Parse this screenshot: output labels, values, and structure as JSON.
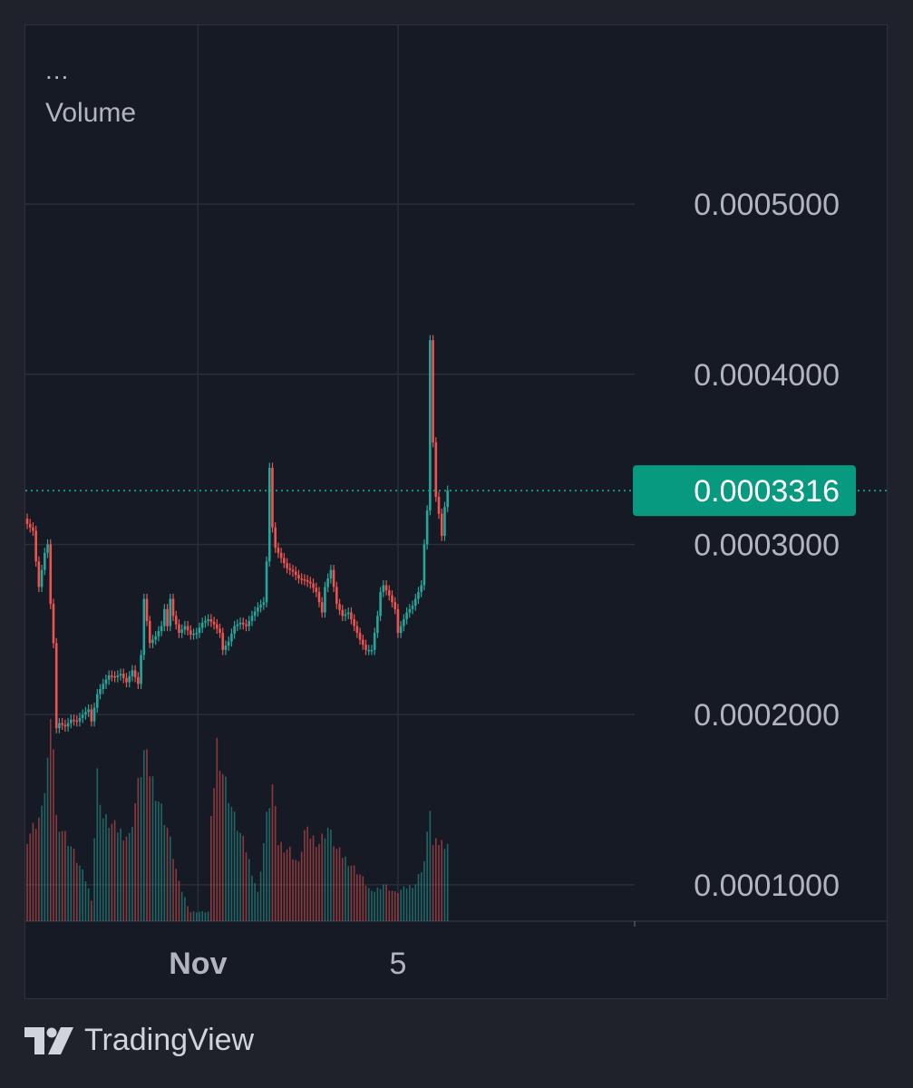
{
  "legend": {
    "more": "...",
    "volume": "Volume"
  },
  "branding": {
    "name": "TradingView",
    "logo_icon": "tradingview-logo-icon"
  },
  "colors": {
    "background": "#1f222b",
    "pane": "#161a25",
    "grid": "#2a2e39",
    "up": "#26a69a",
    "down": "#ef5350",
    "price_tag": "#089981",
    "axis_text": "#b2b5be"
  },
  "chart_data": {
    "type": "candlestick",
    "title": "",
    "xlabel": "",
    "ylabel": "",
    "ylim": [
      7.86e-05,
      0.000605
    ],
    "y_ticks": [
      "0.0005000",
      "0.0004000",
      "0.0003000",
      "0.0002000",
      "0.0001000"
    ],
    "y_tick_values": [
      0.0005,
      0.0004,
      0.0003,
      0.0002,
      0.0001
    ],
    "x_ticks": [
      {
        "label": "Nov",
        "bold": true,
        "index": 58.5
      },
      {
        "label": "5",
        "bold": false,
        "index": 127
      }
    ],
    "last_price": {
      "label": "0.0003316",
      "value": 0.0003316
    },
    "grid": true,
    "bars_on_chart": 171,
    "candle_path": [
      [
        0,
        0.000312
      ],
      [
        2,
        0.000308
      ],
      [
        3,
        0.00029
      ],
      [
        4,
        0.000275
      ],
      [
        5,
        0.000285
      ],
      [
        6,
        0.000295
      ],
      [
        7,
        0.0003
      ],
      [
        8,
        0.000265
      ],
      [
        9,
        0.000242
      ],
      [
        10,
        0.000192
      ],
      [
        11,
        0.000195
      ],
      [
        13,
        0.000193
      ],
      [
        15,
        0.000197
      ],
      [
        17,
        0.000196
      ],
      [
        19,
        0.0002
      ],
      [
        21,
        0.000203
      ],
      [
        22,
        0.000196
      ],
      [
        24,
        0.000212
      ],
      [
        26,
        0.000218
      ],
      [
        28,
        0.000223
      ],
      [
        30,
        0.000222
      ],
      [
        32,
        0.000224
      ],
      [
        34,
        0.000219
      ],
      [
        36,
        0.000226
      ],
      [
        38,
        0.000218
      ],
      [
        39,
        0.000235
      ],
      [
        40,
        0.000268
      ],
      [
        42,
        0.000242
      ],
      [
        44,
        0.000246
      ],
      [
        46,
        0.000252
      ],
      [
        47,
        0.000262
      ],
      [
        48,
        0.000252
      ],
      [
        49,
        0.000268
      ],
      [
        50,
        0.000258
      ],
      [
        52,
        0.000248
      ],
      [
        54,
        0.000252
      ],
      [
        56,
        0.000247
      ],
      [
        58,
        0.000248
      ],
      [
        60,
        0.000254
      ],
      [
        62,
        0.000256
      ],
      [
        64,
        0.000253
      ],
      [
        66,
        0.000248
      ],
      [
        67,
        0.000238
      ],
      [
        69,
        0.000243
      ],
      [
        71,
        0.000252
      ],
      [
        73,
        0.000254
      ],
      [
        75,
        0.000252
      ],
      [
        77,
        0.000258
      ],
      [
        79,
        0.000263
      ],
      [
        81,
        0.000266
      ],
      [
        82,
        0.00029
      ],
      [
        83,
        0.000345
      ],
      [
        84,
        0.00031
      ],
      [
        85,
        0.000298
      ],
      [
        87,
        0.000292
      ],
      [
        89,
        0.000286
      ],
      [
        91,
        0.000284
      ],
      [
        93,
        0.00028
      ],
      [
        95,
        0.000279
      ],
      [
        97,
        0.000277
      ],
      [
        99,
        0.000272
      ],
      [
        101,
        0.00026
      ],
      [
        102,
        0.000275
      ],
      [
        104,
        0.000285
      ],
      [
        105,
        0.000275
      ],
      [
        106,
        0.000265
      ],
      [
        108,
        0.000258
      ],
      [
        110,
        0.00026
      ],
      [
        112,
        0.000252
      ],
      [
        114,
        0.000244
      ],
      [
        116,
        0.000238
      ],
      [
        118,
        0.000238
      ],
      [
        120,
        0.000258
      ],
      [
        121,
        0.000272
      ],
      [
        122,
        0.000276
      ],
      [
        124,
        0.00027
      ],
      [
        126,
        0.000262
      ],
      [
        127,
        0.000248
      ],
      [
        128,
        0.000252
      ],
      [
        130,
        0.00026
      ],
      [
        132,
        0.000264
      ],
      [
        134,
        0.000272
      ],
      [
        135,
        0.000276
      ],
      [
        136,
        0.0003
      ],
      [
        137,
        0.00032
      ],
      [
        138,
        0.00042
      ],
      [
        139,
        0.00036
      ],
      [
        140,
        0.000328
      ],
      [
        141,
        0.000318
      ],
      [
        142,
        0.000305
      ],
      [
        143,
        0.000322
      ],
      [
        144,
        0.0003316
      ]
    ],
    "candle_wick": 3e-06,
    "volume_profile": [
      [
        0,
        0.45
      ],
      [
        5,
        0.58
      ],
      [
        8,
        1.0
      ],
      [
        9,
        0.95
      ],
      [
        10,
        0.55
      ],
      [
        15,
        0.4
      ],
      [
        20,
        0.22
      ],
      [
        22,
        0.12
      ],
      [
        24,
        0.78
      ],
      [
        26,
        0.55
      ],
      [
        30,
        0.5
      ],
      [
        35,
        0.45
      ],
      [
        40,
        0.9
      ],
      [
        44,
        0.7
      ],
      [
        48,
        0.5
      ],
      [
        52,
        0.2
      ],
      [
        56,
        0.05
      ],
      [
        62,
        0.05
      ],
      [
        63,
        0.52
      ],
      [
        65,
        0.95
      ],
      [
        67,
        0.8
      ],
      [
        71,
        0.55
      ],
      [
        75,
        0.38
      ],
      [
        79,
        0.15
      ],
      [
        82,
        0.55
      ],
      [
        84,
        0.72
      ],
      [
        86,
        0.42
      ],
      [
        90,
        0.38
      ],
      [
        93,
        0.3
      ],
      [
        95,
        0.48
      ],
      [
        100,
        0.42
      ],
      [
        103,
        0.5
      ],
      [
        106,
        0.38
      ],
      [
        110,
        0.32
      ],
      [
        114,
        0.25
      ],
      [
        118,
        0.15
      ],
      [
        122,
        0.2
      ],
      [
        126,
        0.15
      ],
      [
        130,
        0.18
      ],
      [
        133,
        0.2
      ],
      [
        136,
        0.32
      ],
      [
        137,
        0.45
      ],
      [
        138,
        0.62
      ],
      [
        139,
        0.4
      ],
      [
        141,
        0.42
      ],
      [
        144,
        0.42
      ]
    ]
  }
}
